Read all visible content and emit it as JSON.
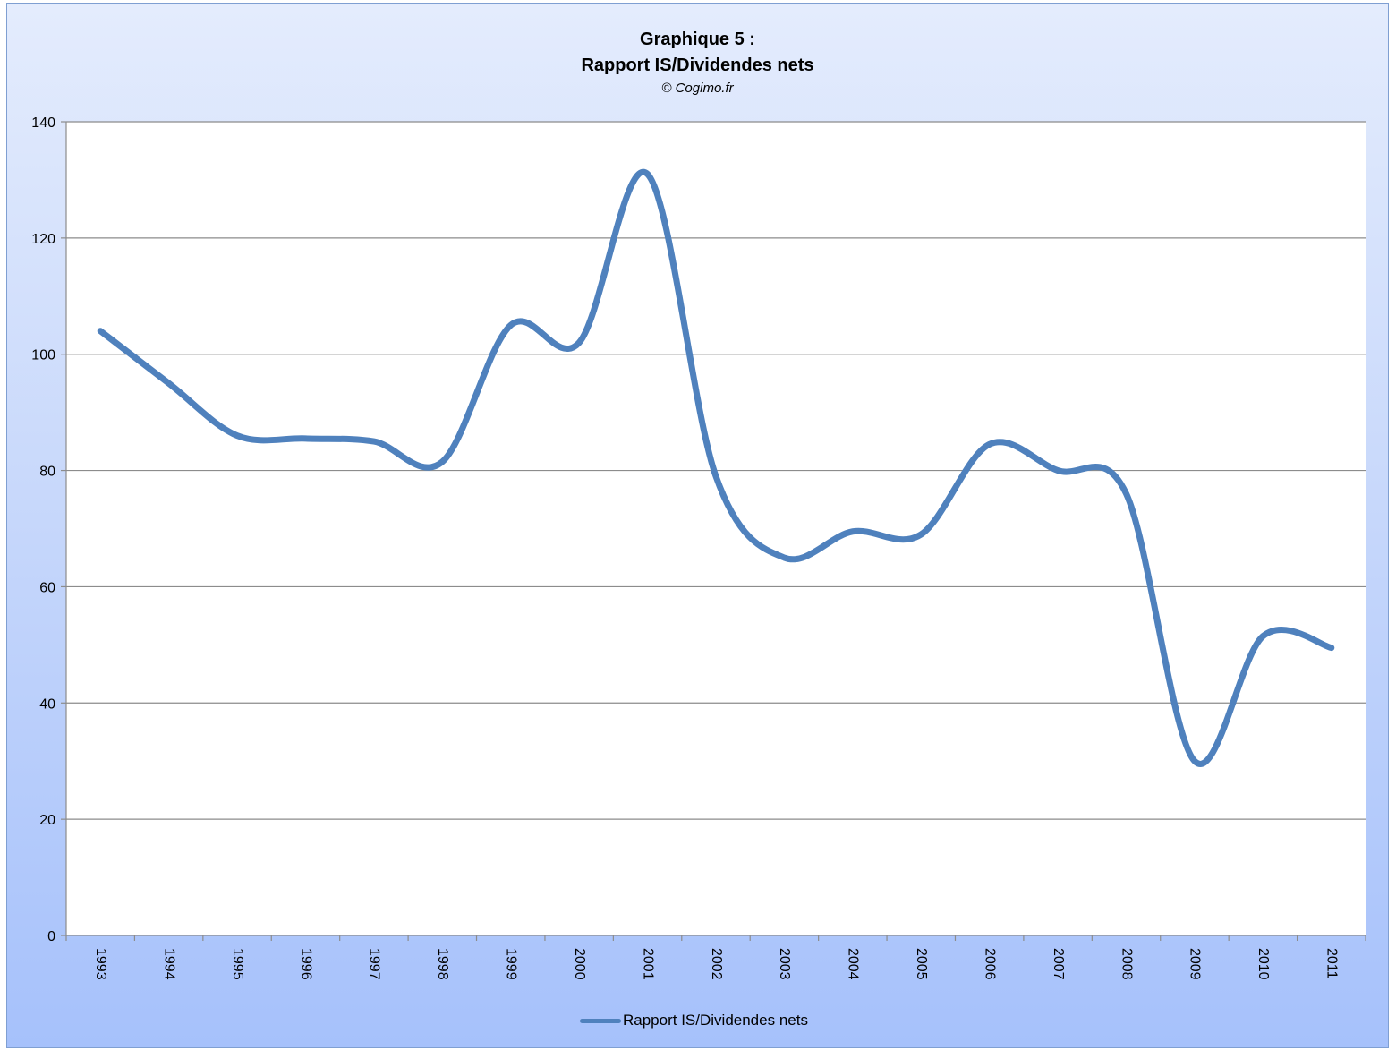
{
  "chart_data": {
    "type": "line",
    "title": "Graphique 5 :",
    "subtitle": "Rapport IS/Dividendes nets",
    "credit": "© Cogimo.fr",
    "categories": [
      "1993",
      "1994",
      "1995",
      "1996",
      "1997",
      "1998",
      "1999",
      "2000",
      "2001",
      "2002",
      "2003",
      "2004",
      "2005",
      "2006",
      "2007",
      "2008",
      "2009",
      "2010",
      "2011"
    ],
    "series": [
      {
        "name": "Rapport IS/Dividendes nets",
        "values": [
          104,
          95,
          86,
          85.5,
          85,
          81.5,
          105,
          102,
          131,
          79,
          65,
          69.5,
          69,
          84.5,
          80,
          76,
          30,
          51.5,
          49.5
        ]
      }
    ],
    "ylim": [
      0,
      140
    ],
    "yticks": [
      0,
      20,
      40,
      60,
      80,
      100,
      120,
      140
    ],
    "xlabel": "",
    "ylabel": "",
    "grid": true,
    "legend": "bottom",
    "line_color": "#4f81bd"
  }
}
